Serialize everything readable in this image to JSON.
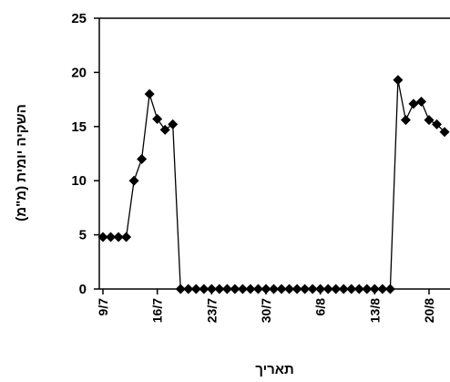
{
  "chart_data": {
    "type": "line",
    "title": "",
    "xlabel": "תאריך",
    "ylabel": "השקיה יומית (מ\"מ)",
    "ylim": [
      0,
      25
    ],
    "yticks": [
      0,
      5,
      10,
      15,
      20,
      25
    ],
    "x_start_label": "9/7",
    "x_tick_labels": [
      "9/7",
      "16/7",
      "23/7",
      "30/7",
      "6/8",
      "13/8",
      "20/8"
    ],
    "x_tick_days": [
      0,
      7,
      14,
      21,
      28,
      35,
      42
    ],
    "xlim_days": [
      0,
      44.7
    ],
    "grid": false,
    "legend": "none",
    "marker": "diamond",
    "line_color": "#000000",
    "series": [
      {
        "points": [
          [
            0,
            4.8
          ],
          [
            1,
            4.8
          ],
          [
            2,
            4.8
          ],
          [
            3,
            4.8
          ],
          [
            4,
            10.0
          ],
          [
            5,
            12.0
          ],
          [
            6,
            18.0
          ],
          [
            7,
            15.7
          ],
          [
            8,
            14.7
          ],
          [
            9,
            15.2
          ],
          [
            10,
            0
          ],
          [
            11,
            0
          ],
          [
            12,
            0
          ],
          [
            13,
            0
          ],
          [
            14,
            0
          ],
          [
            15,
            0
          ],
          [
            16,
            0
          ],
          [
            17,
            0
          ],
          [
            18,
            0
          ],
          [
            19,
            0
          ],
          [
            20,
            0
          ],
          [
            21,
            0
          ],
          [
            22,
            0
          ],
          [
            23,
            0
          ],
          [
            24,
            0
          ],
          [
            25,
            0
          ],
          [
            26,
            0
          ],
          [
            27,
            0
          ],
          [
            28,
            0
          ],
          [
            29,
            0
          ],
          [
            30,
            0
          ],
          [
            31,
            0
          ],
          [
            32,
            0
          ],
          [
            33,
            0
          ],
          [
            34,
            0
          ],
          [
            35,
            0
          ],
          [
            36,
            0
          ],
          [
            37,
            0
          ],
          [
            38,
            19.3
          ],
          [
            39,
            15.6
          ],
          [
            40,
            17.1
          ],
          [
            41,
            17.3
          ],
          [
            42,
            15.6
          ],
          [
            43,
            15.2
          ],
          [
            44,
            14.5
          ]
        ]
      }
    ]
  }
}
